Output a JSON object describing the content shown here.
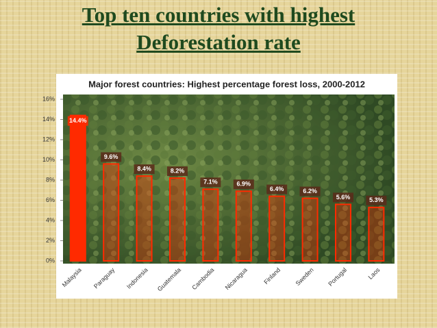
{
  "slide_title": "Top ten countries with highest\nDeforestation rate",
  "chart_data": {
    "type": "bar",
    "title": "Major forest countries: Highest percentage forest loss, 2000-2012",
    "categories": [
      "Malaysia",
      "Paraguay",
      "Indonesia",
      "Guatemala",
      "Cambodia",
      "Nicaragua",
      "Finland",
      "Sweden",
      "Portugal",
      "Laos"
    ],
    "values": [
      14.4,
      9.6,
      8.4,
      8.2,
      7.1,
      6.9,
      6.4,
      6.2,
      5.6,
      5.3
    ],
    "value_labels": [
      "14.4%",
      "9.6%",
      "8.4%",
      "8.2%",
      "7.1%",
      "6.9%",
      "6.4%",
      "6.2%",
      "5.6%",
      "5.3%"
    ],
    "color": "#ff2a00",
    "ylim": [
      0,
      16
    ],
    "yticks": [
      {
        "value": 0,
        "label": "0%"
      },
      {
        "value": 2,
        "label": "2%"
      },
      {
        "value": 4,
        "label": "4%"
      },
      {
        "value": 6,
        "label": "6%"
      },
      {
        "value": 8,
        "label": "8%"
      },
      {
        "value": 10,
        "label": "10%"
      },
      {
        "value": 12,
        "label": "12%"
      },
      {
        "value": 14,
        "label": "14%"
      },
      {
        "value": 16,
        "label": "16%"
      }
    ]
  }
}
